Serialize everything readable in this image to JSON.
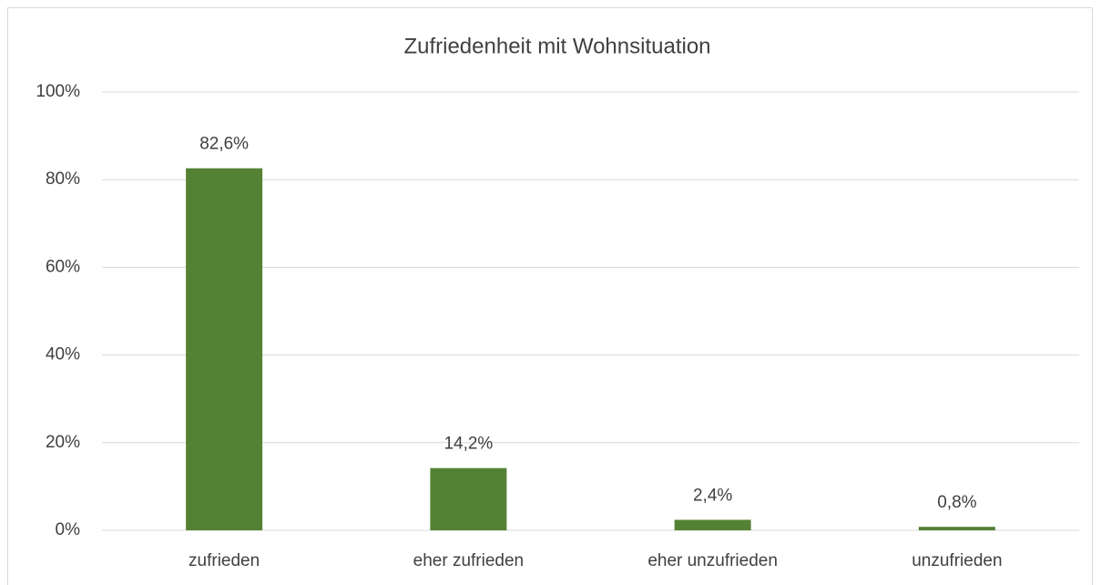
{
  "chart_data": {
    "type": "bar",
    "title": "Zufriedenheit mit Wohnsituation",
    "categories": [
      "zufrieden",
      "eher zufrieden",
      "eher unzufrieden",
      "unzufrieden"
    ],
    "values": [
      82.6,
      14.2,
      2.4,
      0.8
    ],
    "value_labels": [
      "82,6%",
      "14,2%",
      "2,4%",
      "0,8%"
    ],
    "color": "#548235",
    "ylim": [
      0,
      100
    ],
    "yticks": [
      {
        "value": 0,
        "label": "0%"
      },
      {
        "value": 20,
        "label": "20%"
      },
      {
        "value": 40,
        "label": "40%"
      },
      {
        "value": 60,
        "label": "60%"
      },
      {
        "value": 80,
        "label": "80%"
      },
      {
        "value": 100,
        "label": "100%"
      }
    ],
    "grid": true
  }
}
